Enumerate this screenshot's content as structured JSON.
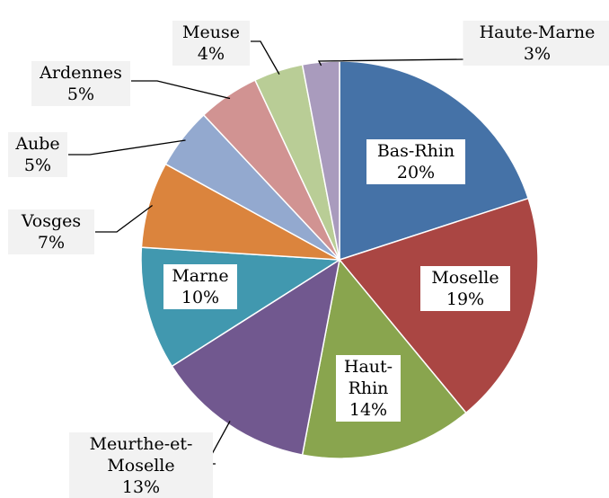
{
  "chart_data": {
    "type": "pie",
    "categories": [
      "Bas-Rhin",
      "Moselle",
      "Haut-Rhin",
      "Meurthe-et-Moselle",
      "Marne",
      "Vosges",
      "Aube",
      "Ardennes",
      "Meuse",
      "Haute-Marne"
    ],
    "values": [
      20,
      19,
      14,
      13,
      10,
      7,
      5,
      5,
      4,
      3
    ],
    "value_labels": [
      "20%",
      "19%",
      "14%",
      "13%",
      "10%",
      "7%",
      "5%",
      "5%",
      "4%",
      "3%"
    ],
    "colors": [
      "#4572a7",
      "#aa4643",
      "#89a54e",
      "#71588f",
      "#4198af",
      "#db843d",
      "#93a9cf",
      "#d19392",
      "#b9cd96",
      "#a99bbd"
    ]
  }
}
